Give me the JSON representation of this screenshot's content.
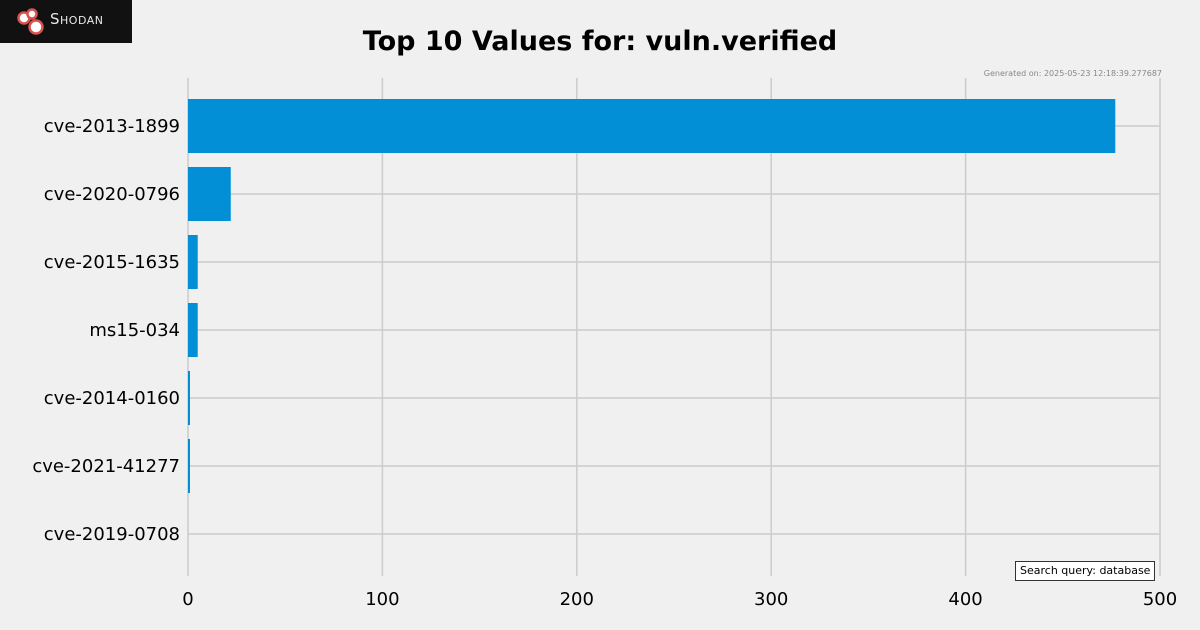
{
  "brand": {
    "logo_text": "Shodan",
    "logo_color": "#d9534f"
  },
  "header": {
    "generated": "Generated on: 2025-05-23 12:18:39.277687"
  },
  "query": {
    "label": "Search query: database"
  },
  "colors": {
    "bar": "#038fd5",
    "grid": "#cbcbcb",
    "background": "#f0f0f0"
  },
  "chart_data": {
    "type": "bar",
    "orientation": "horizontal",
    "title": "Top 10 Values for: vuln.verified",
    "categories": [
      "cve-2013-1899",
      "cve-2020-0796",
      "cve-2015-1635",
      "ms15-034",
      "cve-2014-0160",
      "cve-2021-41277",
      "cve-2019-0708"
    ],
    "values": [
      477,
      22,
      5,
      5,
      1,
      1,
      0
    ],
    "xlim": [
      0,
      500
    ],
    "xticks": [
      0,
      100,
      200,
      300,
      400,
      500
    ],
    "grid": true
  }
}
